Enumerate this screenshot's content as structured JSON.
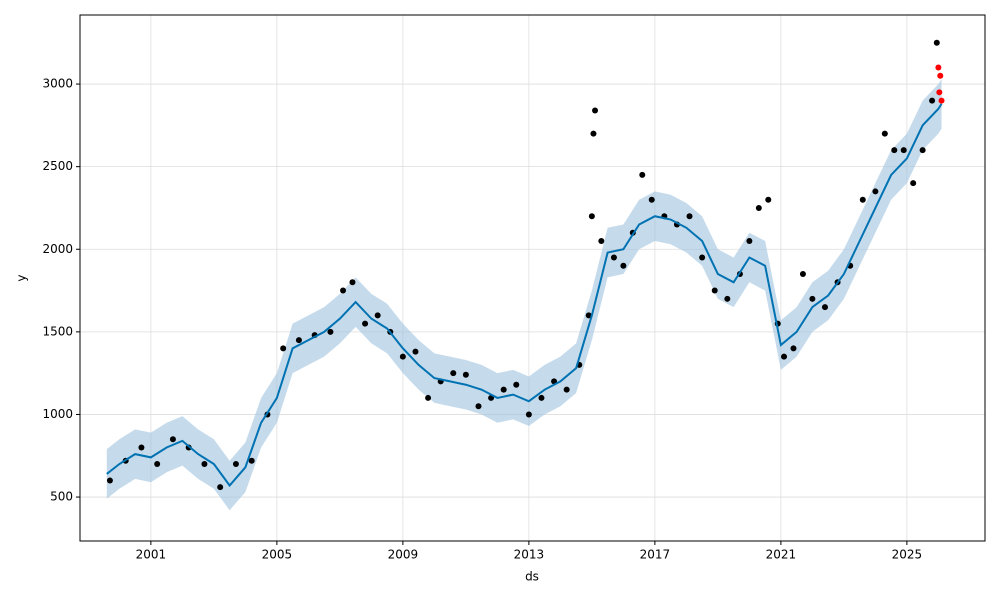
{
  "chart_data": {
    "type": "line",
    "x_label": "ds",
    "y_label": "y",
    "xlim": [
      1998.75,
      2027.48
    ],
    "xticks": [
      2001,
      2005,
      2009,
      2013,
      2017,
      2021,
      2025
    ],
    "ylim": [
      234,
      3418
    ],
    "yticks": [
      500,
      1000,
      1500,
      2000,
      2500,
      3000
    ],
    "grid": true,
    "forecast": {
      "color": "#0072B2",
      "x": [
        1999.6,
        2000,
        2000.5,
        2001,
        2001.5,
        2002,
        2002.5,
        2003,
        2003.5,
        2004,
        2004.5,
        2005,
        2005.5,
        2006,
        2006.5,
        2007,
        2007.5,
        2008,
        2008.5,
        2009,
        2009.5,
        2010,
        2010.5,
        2011,
        2011.5,
        2012,
        2012.5,
        2013,
        2013.5,
        2014,
        2014.5,
        2015,
        2015.5,
        2016,
        2016.5,
        2017,
        2017.5,
        2018,
        2018.5,
        2019,
        2019.5,
        2020,
        2020.5,
        2021,
        2021.5,
        2022,
        2022.5,
        2023,
        2023.5,
        2024,
        2024.5,
        2025,
        2025.5,
        2026,
        2026.1
      ],
      "values": [
        640,
        700,
        760,
        740,
        800,
        840,
        760,
        700,
        570,
        680,
        950,
        1100,
        1400,
        1450,
        1500,
        1580,
        1680,
        1580,
        1520,
        1400,
        1300,
        1220,
        1200,
        1180,
        1150,
        1100,
        1120,
        1080,
        1150,
        1200,
        1280,
        1600,
        1980,
        2000,
        2150,
        2200,
        2180,
        2130,
        2050,
        1850,
        1800,
        1950,
        1900,
        1420,
        1500,
        1650,
        1720,
        1850,
        2050,
        2250,
        2450,
        2550,
        2750,
        2850,
        2880
      ],
      "lower": [
        490,
        550,
        610,
        590,
        650,
        690,
        610,
        550,
        420,
        530,
        800,
        950,
        1250,
        1300,
        1350,
        1430,
        1530,
        1430,
        1370,
        1250,
        1150,
        1070,
        1050,
        1030,
        1000,
        950,
        970,
        930,
        1000,
        1050,
        1130,
        1450,
        1830,
        1850,
        2000,
        2050,
        2030,
        1980,
        1900,
        1700,
        1650,
        1800,
        1750,
        1270,
        1350,
        1500,
        1570,
        1700,
        1900,
        2100,
        2300,
        2400,
        2600,
        2700,
        2730
      ],
      "upper": [
        790,
        850,
        910,
        890,
        950,
        990,
        910,
        850,
        720,
        830,
        1100,
        1250,
        1550,
        1600,
        1650,
        1730,
        1830,
        1730,
        1670,
        1550,
        1450,
        1370,
        1350,
        1330,
        1300,
        1250,
        1270,
        1230,
        1300,
        1350,
        1430,
        1750,
        2130,
        2150,
        2300,
        2350,
        2330,
        2280,
        2200,
        2000,
        1950,
        2100,
        2050,
        1570,
        1650,
        1800,
        1870,
        2000,
        2200,
        2400,
        2600,
        2700,
        2900,
        3000,
        3030
      ],
      "band_color": "#9ec3e0"
    },
    "observed": {
      "color": "#000000",
      "x": [
        1999.7,
        2000.2,
        2000.7,
        2001.2,
        2001.7,
        2002.2,
        2002.7,
        2003.2,
        2003.7,
        2004.2,
        2004.7,
        2005.2,
        2005.7,
        2006.2,
        2006.7,
        2007.1,
        2007.4,
        2007.8,
        2008.2,
        2008.6,
        2009.0,
        2009.4,
        2009.8,
        2010.2,
        2010.6,
        2011.0,
        2011.4,
        2011.8,
        2012.2,
        2012.6,
        2013.0,
        2013.4,
        2013.8,
        2014.2,
        2014.6,
        2014.9,
        2015.0,
        2015.05,
        2015.1,
        2015.3,
        2015.7,
        2016.0,
        2016.3,
        2016.6,
        2016.9,
        2017.3,
        2017.7,
        2018.1,
        2018.5,
        2018.9,
        2019.3,
        2019.7,
        2020.0,
        2020.3,
        2020.6,
        2020.9,
        2021.1,
        2021.4,
        2021.7,
        2022.0,
        2022.4,
        2022.8,
        2023.2,
        2023.6,
        2024.0,
        2024.3,
        2024.6,
        2024.9,
        2025.2,
        2025.5,
        2025.8,
        2025.95
      ],
      "values": [
        600,
        720,
        800,
        700,
        850,
        800,
        700,
        560,
        700,
        720,
        1000,
        1400,
        1450,
        1480,
        1500,
        1750,
        1800,
        1550,
        1600,
        1500,
        1350,
        1380,
        1100,
        1200,
        1250,
        1240,
        1050,
        1100,
        1150,
        1180,
        1000,
        1100,
        1200,
        1150,
        1300,
        1600,
        2200,
        2700,
        2840,
        2050,
        1950,
        1900,
        2100,
        2450,
        2300,
        2200,
        2150,
        2200,
        1950,
        1750,
        1700,
        1850,
        2050,
        2250,
        2300,
        1550,
        1350,
        1400,
        1850,
        1700,
        1650,
        1800,
        1900,
        2300,
        2350,
        2700,
        2600,
        2600,
        2400,
        2600,
        2900,
        3250
      ]
    },
    "recent": {
      "color": "#ff0000",
      "x": [
        2026.0,
        2026.03,
        2026.06,
        2026.1
      ],
      "values": [
        3100,
        2950,
        3050,
        2900
      ]
    }
  }
}
